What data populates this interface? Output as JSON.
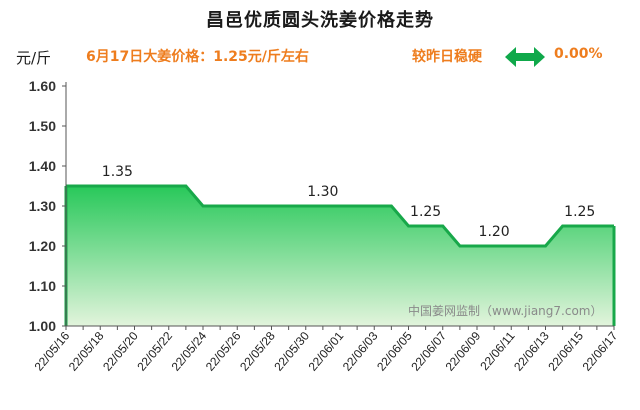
{
  "header": {
    "title": "昌邑优质圆头洗姜价格走势",
    "unit": "元/斤",
    "price_note": "6月17日大姜价格：1.25元/斤左右",
    "trend_label": "较昨日稳硬",
    "trend_icon": "double-arrow-icon",
    "trend_pct": "0.00%"
  },
  "watermark": "中国姜网监制（www.jiang7.com）",
  "colors": {
    "line": "#18a84a",
    "fill_top": "#28c85a",
    "fill_bottom": "#e2f4dc",
    "accent": "#ee7d1e",
    "arrow": "#0fa84a"
  },
  "chart_data": {
    "type": "area",
    "title": "昌邑优质圆头洗姜价格走势",
    "ylabel": "元/斤",
    "ylim": [
      1.0,
      1.6
    ],
    "yticks": [
      "1.00",
      "1.10",
      "1.20",
      "1.30",
      "1.40",
      "1.50",
      "1.60"
    ],
    "grid": false,
    "x": [
      "22/05/16",
      "22/05/17",
      "22/05/18",
      "22/05/19",
      "22/05/20",
      "22/05/21",
      "22/05/22",
      "22/05/23",
      "22/05/24",
      "22/05/25",
      "22/05/26",
      "22/05/27",
      "22/05/28",
      "22/05/29",
      "22/05/30",
      "22/05/31",
      "22/06/01",
      "22/06/02",
      "22/06/03",
      "22/06/04",
      "22/06/05",
      "22/06/06",
      "22/06/07",
      "22/06/08",
      "22/06/09",
      "22/06/10",
      "22/06/11",
      "22/06/12",
      "22/06/13",
      "22/06/14",
      "22/06/15",
      "22/06/16",
      "22/06/17"
    ],
    "values": [
      1.35,
      1.35,
      1.35,
      1.35,
      1.35,
      1.35,
      1.35,
      1.35,
      1.3,
      1.3,
      1.3,
      1.3,
      1.3,
      1.3,
      1.3,
      1.3,
      1.3,
      1.3,
      1.3,
      1.3,
      1.25,
      1.25,
      1.25,
      1.2,
      1.2,
      1.2,
      1.2,
      1.2,
      1.2,
      1.25,
      1.25,
      1.25,
      1.25
    ],
    "xtick_labels": [
      "22/05/16",
      "22/05/18",
      "22/05/20",
      "22/05/22",
      "22/05/24",
      "22/05/26",
      "22/05/28",
      "22/05/30",
      "22/06/01",
      "22/06/03",
      "22/06/05",
      "22/06/07",
      "22/06/09",
      "22/06/11",
      "22/06/13",
      "22/06/15",
      "22/06/17"
    ],
    "data_labels": [
      {
        "x": "22/05/19",
        "value": "1.35"
      },
      {
        "x": "22/05/31",
        "value": "1.30"
      },
      {
        "x": "22/06/06",
        "value": "1.25"
      },
      {
        "x": "22/06/10",
        "value": "1.20"
      },
      {
        "x": "22/06/15",
        "value": "1.25"
      }
    ]
  }
}
